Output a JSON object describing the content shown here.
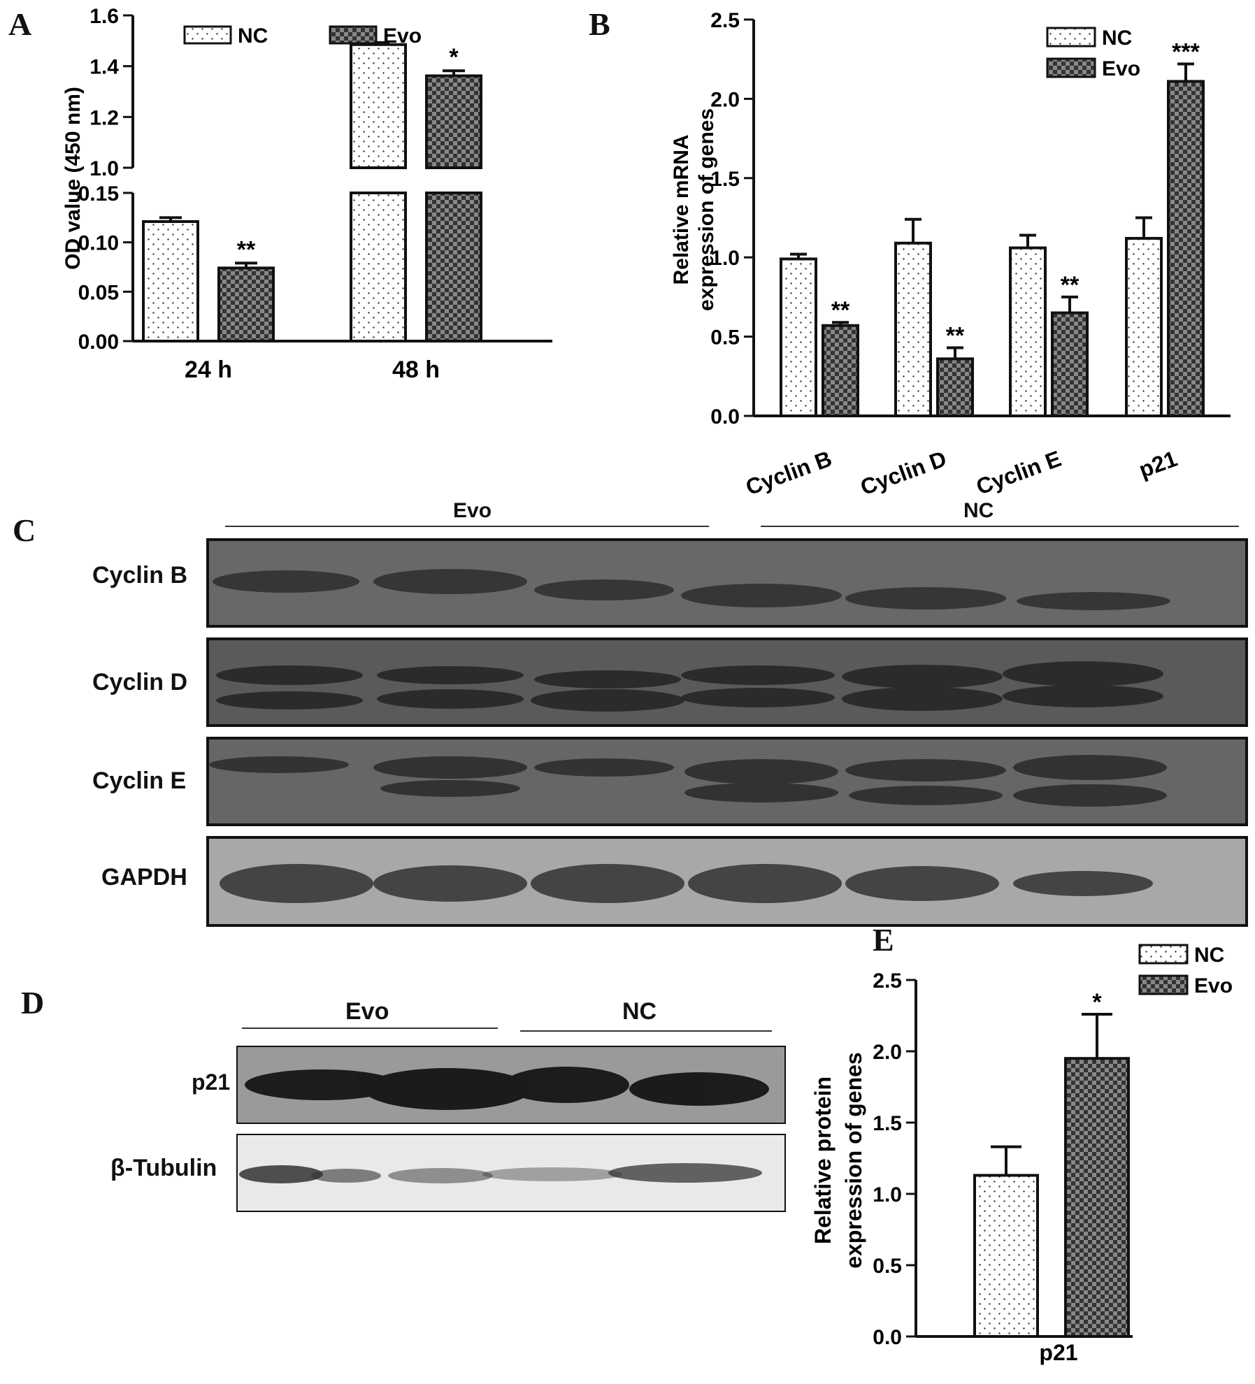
{
  "panels": {
    "A": "A",
    "B": "B",
    "C": "C",
    "D": "D",
    "E": "E"
  },
  "colors": {
    "NC": "#ffffff",
    "Evo": "#555555",
    "axis": "#111111"
  },
  "chart_data": [
    {
      "id": "A",
      "type": "bar",
      "ylabel": "OD value (450 nm)",
      "categories": [
        "24 h",
        "48 h"
      ],
      "series": [
        {
          "name": "NC",
          "values": [
            0.121,
            1.485
          ],
          "errors": [
            0.004,
            0.008
          ]
        },
        {
          "name": "Evo",
          "values": [
            0.074,
            1.362
          ],
          "errors": [
            0.005,
            0.02
          ]
        }
      ],
      "annotations": [
        {
          "category": "24 h",
          "series": "Evo",
          "text": "**"
        },
        {
          "category": "48 h",
          "series": "Evo",
          "text": "*"
        }
      ],
      "axis_break": {
        "lower": [
          0,
          0.15
        ],
        "upper": [
          1.0,
          1.6
        ]
      },
      "yticks_lower": [
        "0.00",
        "0.05",
        "0.10",
        "0.15"
      ],
      "yticks_upper": [
        "1.0",
        "1.2",
        "1.4",
        "1.6"
      ],
      "legend": [
        "NC",
        "Evo"
      ],
      "legend_position": "top"
    },
    {
      "id": "B",
      "type": "bar",
      "ylabel_line1": "Relative mRNA",
      "ylabel_line2": "expression of genes",
      "categories": [
        "Cyclin B",
        "Cyclin D",
        "Cyclin E",
        "p21"
      ],
      "series": [
        {
          "name": "NC",
          "values": [
            0.99,
            1.09,
            1.06,
            1.12
          ],
          "errors": [
            0.03,
            0.15,
            0.08,
            0.13
          ]
        },
        {
          "name": "Evo",
          "values": [
            0.57,
            0.36,
            0.65,
            2.11
          ],
          "errors": [
            0.02,
            0.07,
            0.1,
            0.11
          ]
        }
      ],
      "annotations": [
        "**",
        "**",
        "**",
        "***"
      ],
      "ylim": [
        0,
        2.5
      ],
      "yticks": [
        "0.0",
        "0.5",
        "1.0",
        "1.5",
        "2.0",
        "2.5"
      ],
      "legend": [
        "NC",
        "Evo"
      ],
      "legend_position": "top-right"
    },
    {
      "id": "E",
      "type": "bar",
      "ylabel_line1": "Relative protein",
      "ylabel_line2": "expression of genes",
      "categories": [
        "p21"
      ],
      "series": [
        {
          "name": "NC",
          "values": [
            1.13
          ],
          "errors": [
            0.2
          ]
        },
        {
          "name": "Evo",
          "values": [
            1.95
          ],
          "errors": [
            0.31
          ]
        }
      ],
      "annotations": [
        "*"
      ],
      "ylim": [
        0,
        2.5
      ],
      "yticks": [
        "0.0",
        "0.5",
        "1.0",
        "1.5",
        "2.0",
        "2.5"
      ],
      "legend": [
        "NC",
        "Evo"
      ],
      "legend_position": "top-right"
    }
  ],
  "blot_c": {
    "group_labels": [
      "Evo",
      "NC"
    ],
    "rows": [
      "Cyclin B",
      "Cyclin D",
      "Cyclin E",
      "GAPDH"
    ]
  },
  "blot_d": {
    "group_labels": [
      "Evo",
      "NC"
    ],
    "rows": [
      "p21",
      "β-Tubulin"
    ]
  }
}
